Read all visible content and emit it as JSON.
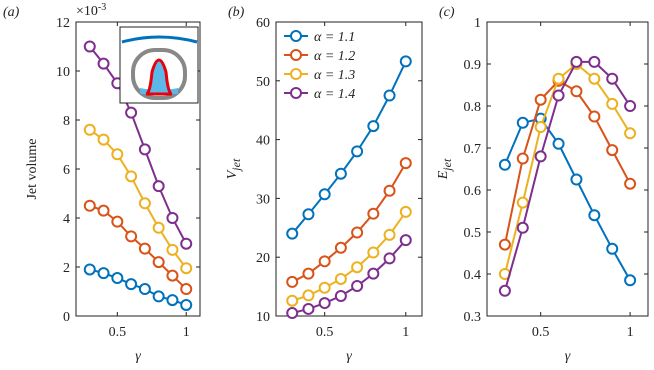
{
  "chart_data": [
    {
      "type": "line",
      "panel_label": "(a)",
      "ylabel": "Jet volume",
      "xlabel": "γ",
      "y_multiplier": "×10",
      "y_multiplier_exp": "-3",
      "x": [
        0.3,
        0.4,
        0.5,
        0.6,
        0.7,
        0.8,
        0.9,
        1.0
      ],
      "xlim": [
        0.2,
        1.1
      ],
      "xticks": [
        0.5,
        1
      ],
      "ylim": [
        0,
        12
      ],
      "yticks": [
        0,
        2,
        4,
        6,
        8,
        10,
        12
      ],
      "series": [
        {
          "color": "#0072BD",
          "values": [
            1.9,
            1.75,
            1.55,
            1.3,
            1.1,
            0.8,
            0.65,
            0.45
          ]
        },
        {
          "color": "#D95319",
          "values": [
            4.5,
            4.3,
            3.85,
            3.25,
            2.75,
            2.2,
            1.65,
            1.1
          ]
        },
        {
          "color": "#EDB120",
          "values": [
            7.6,
            7.2,
            6.6,
            5.7,
            4.6,
            3.6,
            2.7,
            1.95
          ]
        },
        {
          "color": "#7E2F8E",
          "values": [
            11.0,
            10.3,
            9.5,
            8.3,
            6.8,
            5.3,
            4.0,
            2.95
          ]
        }
      ]
    },
    {
      "type": "line",
      "panel_label": "(b)",
      "ylabel": "V",
      "ylabel_sub": "jet",
      "xlabel": "γ",
      "x": [
        0.3,
        0.4,
        0.5,
        0.6,
        0.7,
        0.8,
        0.9,
        1.0
      ],
      "xlim": [
        0.2,
        1.1
      ],
      "xticks": [
        0.5,
        1
      ],
      "ylim": [
        10,
        60
      ],
      "yticks": [
        10,
        20,
        30,
        40,
        50,
        60
      ],
      "series": [
        {
          "name": "α = 1.1",
          "color": "#0072BD",
          "values": [
            24.0,
            27.3,
            30.7,
            34.2,
            38.0,
            42.3,
            47.5,
            53.3
          ]
        },
        {
          "name": "α = 1.2",
          "color": "#D95319",
          "values": [
            15.8,
            17.2,
            19.3,
            21.6,
            24.2,
            27.4,
            31.3,
            36.0
          ]
        },
        {
          "name": "α = 1.3",
          "color": "#EDB120",
          "values": [
            12.6,
            13.5,
            14.8,
            16.3,
            18.3,
            20.8,
            23.8,
            27.7
          ]
        },
        {
          "name": "α = 1.4",
          "color": "#7E2F8E",
          "values": [
            10.5,
            11.2,
            12.2,
            13.4,
            15.1,
            17.2,
            19.8,
            22.9
          ]
        }
      ]
    },
    {
      "type": "line",
      "panel_label": "(c)",
      "ylabel": "E",
      "ylabel_sub": "jet",
      "xlabel": "γ",
      "x": [
        0.3,
        0.4,
        0.5,
        0.6,
        0.7,
        0.8,
        0.9,
        1.0
      ],
      "xlim": [
        0.2,
        1.1
      ],
      "xticks": [
        0.5,
        1
      ],
      "ylim": [
        0.3,
        1
      ],
      "yticks": [
        0.3,
        0.4,
        0.5,
        0.6,
        0.7,
        0.8,
        0.9,
        1
      ],
      "series": [
        {
          "color": "#0072BD",
          "values": [
            0.66,
            0.76,
            0.77,
            0.71,
            0.625,
            0.54,
            0.46,
            0.385
          ]
        },
        {
          "color": "#D95319",
          "values": [
            0.47,
            0.675,
            0.815,
            0.86,
            0.835,
            0.775,
            0.695,
            0.615
          ]
        },
        {
          "color": "#EDB120",
          "values": [
            0.4,
            0.57,
            0.75,
            0.865,
            0.9,
            0.865,
            0.805,
            0.735
          ]
        },
        {
          "color": "#7E2F8E",
          "values": [
            0.36,
            0.51,
            0.68,
            0.825,
            0.905,
            0.905,
            0.865,
            0.8
          ]
        }
      ]
    }
  ]
}
